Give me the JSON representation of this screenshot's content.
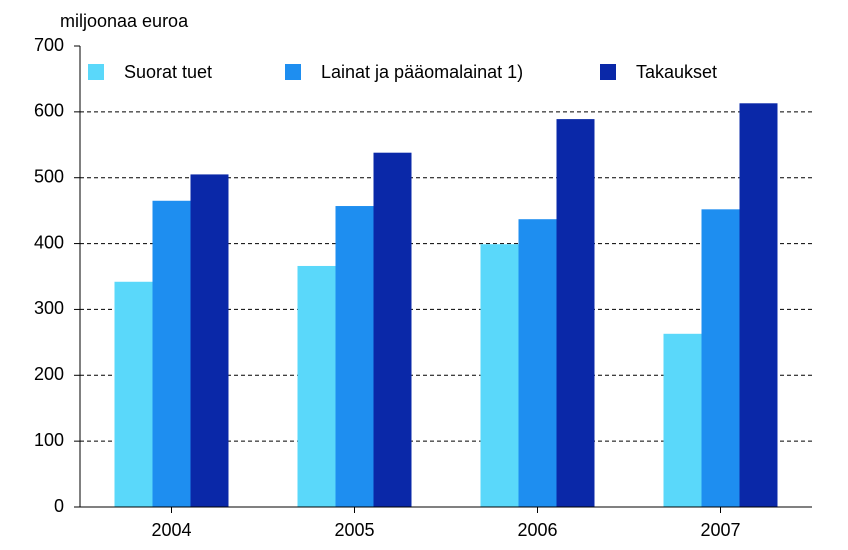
{
  "chart_data": {
    "type": "bar",
    "y_label": "miljoonaa euroa",
    "categories": [
      "2004",
      "2005",
      "2006",
      "2007"
    ],
    "series": [
      {
        "name": "Suorat tuet",
        "color": "#5ad8fa",
        "values": [
          342,
          366,
          399,
          263
        ]
      },
      {
        "name": "Lainat ja pääomalainat 1)",
        "color": "#1e8ef0",
        "values": [
          465,
          457,
          437,
          452
        ]
      },
      {
        "name": "Takaukset",
        "color": "#0a28a8",
        "values": [
          505,
          538,
          589,
          613
        ]
      }
    ],
    "ylim": [
      0,
      700
    ],
    "yticks": [
      0,
      100,
      200,
      300,
      400,
      500,
      600,
      700
    ],
    "grid": true
  }
}
